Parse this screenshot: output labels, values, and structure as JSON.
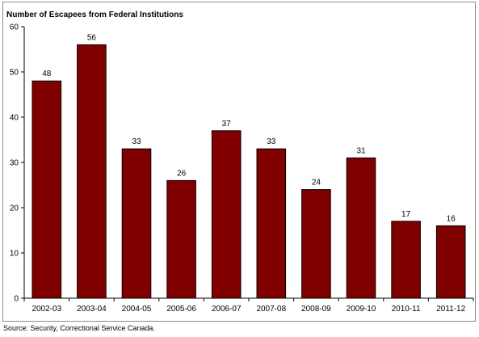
{
  "chart_data": {
    "type": "bar",
    "title": "Number of Escapees from Federal Institutions",
    "categories": [
      "2002-03",
      "2003-04",
      "2004-05",
      "2005-06",
      "2006-07",
      "2007-08",
      "2008-09",
      "2009-10",
      "2010-11",
      "2011-12"
    ],
    "values": [
      48,
      56,
      33,
      26,
      37,
      33,
      24,
      31,
      17,
      16
    ],
    "data_labels": [
      "48",
      "56",
      "33",
      "26",
      "37",
      "33",
      "24",
      "31",
      "17",
      "16"
    ],
    "xlabel": "",
    "ylabel": "",
    "ylim": [
      0,
      60
    ],
    "yticks": [
      0,
      10,
      20,
      30,
      40,
      50,
      60
    ],
    "ytick_labels": [
      "0",
      "10",
      "20",
      "30",
      "40",
      "50",
      "60"
    ],
    "grid": false,
    "legend": "none",
    "bar_color": "#800000"
  },
  "source": "Source:  Security, Correctional Service Canada."
}
